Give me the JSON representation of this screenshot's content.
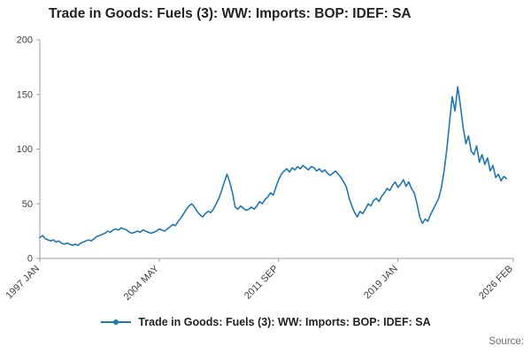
{
  "page": {
    "title": "Trade in Goods: Fuels (3): WW: Imports: BOP: IDEF: SA",
    "source_label": "Source:"
  },
  "legend": {
    "label": "Trade in Goods: Fuels (3): WW: Imports: BOP: IDEF: SA"
  },
  "chart_data": {
    "type": "line",
    "title": "Trade in Goods: Fuels (3): WW: Imports: BOP: IDEF: SA",
    "xlabel": "",
    "ylabel": "",
    "ylim": [
      0,
      200
    ],
    "xlim": [
      1997.0,
      2026.083
    ],
    "y_ticks": [
      0,
      50,
      100,
      150,
      200
    ],
    "x_ticks": [
      {
        "label": "1997 JAN",
        "value": 1997.0
      },
      {
        "label": "2004 MAY",
        "value": 2004.333
      },
      {
        "label": "2011 SEP",
        "value": 2011.667
      },
      {
        "label": "2019 JAN",
        "value": 2019.0
      },
      {
        "label": "2026 FEB",
        "value": 2026.083
      }
    ],
    "grid": false,
    "legend_position": "bottom",
    "line_color": "#1f77b4",
    "axis_color": "#9c9c9c",
    "tick_text_color": "#414042",
    "series": [
      {
        "name": "Trade in Goods: Fuels (3): WW: Imports: BOP: IDEF: SA",
        "x_unit": "decimal_year",
        "x_start": 1997.0,
        "x_step": 0.1666667,
        "values": [
          19,
          21,
          18,
          17,
          16,
          17,
          15,
          16,
          14,
          13,
          14,
          13,
          12,
          13,
          12,
          14,
          15,
          16,
          17,
          16,
          18,
          20,
          21,
          22,
          23,
          25,
          24,
          26,
          27,
          26,
          28,
          27,
          26,
          24,
          23,
          24,
          25,
          24,
          26,
          25,
          24,
          23,
          24,
          25,
          27,
          26,
          25,
          27,
          29,
          31,
          30,
          34,
          37,
          41,
          45,
          48,
          50,
          47,
          43,
          40,
          38,
          41,
          43,
          42,
          45,
          50,
          55,
          62,
          70,
          77,
          70,
          60,
          47,
          45,
          48,
          46,
          44,
          45,
          47,
          45,
          48,
          52,
          50,
          54,
          56,
          60,
          58,
          65,
          72,
          77,
          80,
          82,
          79,
          83,
          81,
          84,
          82,
          85,
          83,
          81,
          84,
          83,
          80,
          82,
          79,
          81,
          78,
          76,
          78,
          80,
          77,
          74,
          70,
          65,
          55,
          48,
          42,
          38,
          43,
          41,
          45,
          50,
          48,
          53,
          55,
          52,
          57,
          60,
          64,
          62,
          67,
          70,
          65,
          68,
          72,
          66,
          70,
          64,
          60,
          50,
          38,
          32,
          36,
          34,
          40,
          45,
          50,
          55,
          65,
          80,
          100,
          125,
          148,
          135,
          157,
          140,
          120,
          105,
          112,
          98,
          95,
          103,
          88,
          95,
          86,
          92,
          80,
          85,
          74,
          77,
          71,
          75,
          73
        ]
      }
    ]
  }
}
